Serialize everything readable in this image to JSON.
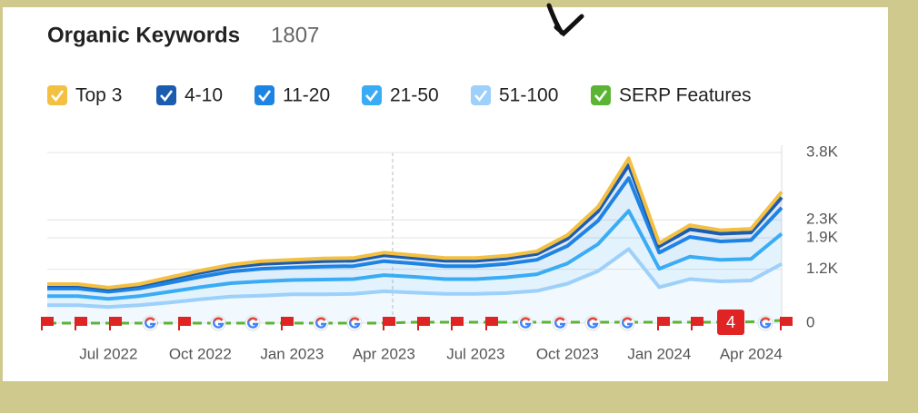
{
  "chart_data": {
    "type": "stacked-area",
    "title": "Organic Keywords",
    "subtitle": "1807",
    "x": [
      "2022-05",
      "2022-06",
      "2022-07",
      "2022-08",
      "2022-09",
      "2022-10",
      "2022-11",
      "2022-12",
      "2023-01",
      "2023-02",
      "2023-03",
      "2023-04",
      "2023-05",
      "2023-06",
      "2023-07",
      "2023-08",
      "2023-09",
      "2023-10",
      "2023-11",
      "2023-12",
      "2024-01",
      "2024-02",
      "2024-03",
      "2024-04",
      "2024-05"
    ],
    "xticks": [
      {
        "value": "2022-07",
        "label": "Jul 2022"
      },
      {
        "value": "2022-10",
        "label": "Oct 2022"
      },
      {
        "value": "2023-01",
        "label": "Jan 2023"
      },
      {
        "value": "2023-04",
        "label": "Apr 2023"
      },
      {
        "value": "2023-07",
        "label": "Jul 2023"
      },
      {
        "value": "2023-10",
        "label": "Oct 2023"
      },
      {
        "value": "2024-01",
        "label": "Jan 2024"
      },
      {
        "value": "2024-04",
        "label": "Apr 2024"
      }
    ],
    "ylim": [
      0,
      3800
    ],
    "yticks": [
      0,
      {
        "value": 1200,
        "label": "1.2K"
      },
      {
        "value": 1900,
        "label": "1.9K"
      },
      {
        "value": 2300,
        "label": "2.3K"
      },
      {
        "value": 3800,
        "label": "3.8K"
      }
    ],
    "grid": true,
    "series": [
      {
        "name": "Top 3",
        "color": "#f4c042",
        "values": [
          30,
          30,
          30,
          30,
          40,
          50,
          50,
          60,
          60,
          60,
          60,
          60,
          60,
          60,
          60,
          60,
          60,
          80,
          100,
          150,
          70,
          90,
          80,
          80,
          120
        ]
      },
      {
        "name": "4-10",
        "color": "#1a5cb0",
        "values": [
          70,
          70,
          60,
          70,
          80,
          90,
          100,
          110,
          110,
          120,
          120,
          130,
          120,
          120,
          120,
          120,
          130,
          160,
          210,
          290,
          140,
          170,
          170,
          170,
          230
        ]
      },
      {
        "name": "11-20",
        "color": "#1e84e4",
        "values": [
          170,
          170,
          160,
          170,
          200,
          230,
          260,
          280,
          280,
          290,
          290,
          310,
          300,
          290,
          290,
          300,
          320,
          390,
          520,
          730,
          360,
          440,
          410,
          420,
          580
        ]
      },
      {
        "name": "21-50",
        "color": "#3aacf5",
        "values": [
          200,
          200,
          180,
          200,
          240,
          270,
          300,
          320,
          320,
          330,
          330,
          360,
          350,
          330,
          330,
          350,
          370,
          450,
          600,
          850,
          410,
          500,
          480,
          480,
          670
        ]
      },
      {
        "name": "51-100",
        "color": "#9dd0fa",
        "values": [
          400,
          400,
          360,
          400,
          460,
          530,
          590,
          610,
          640,
          640,
          650,
          710,
          680,
          650,
          650,
          670,
          720,
          880,
          1160,
          1650,
          800,
          980,
          930,
          950,
          1320
        ]
      },
      {
        "name": "SERP Features",
        "color": "#5bb433",
        "stacked": false,
        "values": [
          0,
          0,
          0,
          0,
          0,
          0,
          0,
          0,
          0,
          0,
          0,
          0,
          20,
          20,
          20,
          20,
          20,
          20,
          20,
          20,
          20,
          20,
          20,
          30,
          60
        ]
      }
    ],
    "event_badge": "4"
  }
}
